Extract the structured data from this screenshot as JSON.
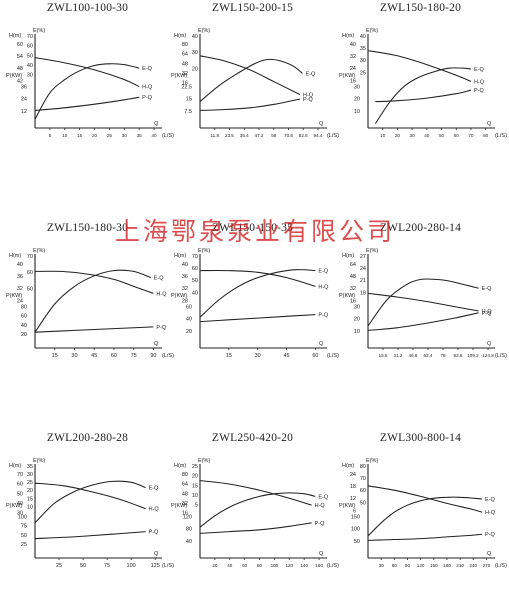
{
  "watermark": "上海鄂泉泵业有限公司",
  "chart_data": [
    {
      "type": "line",
      "title": "ZWL100-100-30",
      "flow_label": "(L/S)",
      "q_label": "Q",
      "xticks": [
        5,
        10,
        15,
        20,
        25,
        30,
        35,
        40
      ],
      "xlim": [
        0,
        42
      ],
      "axis_label_right": "E(%)",
      "axis_label_left": "H(m)",
      "power_label": "P(KW)",
      "axis_ticks_right": [
        "70",
        "60",
        "50",
        "40",
        "30"
      ],
      "axis_ticks_left": [
        "60",
        "54",
        "48",
        "42"
      ],
      "power_ticks": [
        "36",
        "24",
        "12"
      ],
      "series": [
        {
          "name": "H-Q",
          "x": [
            0,
            10,
            20,
            30,
            35
          ],
          "y": [
            0.8,
            0.74,
            0.66,
            0.55,
            0.47
          ]
        },
        {
          "name": "E-Q",
          "x": [
            0,
            5,
            10,
            15,
            20,
            25,
            30,
            35
          ],
          "y": [
            0.1,
            0.4,
            0.55,
            0.65,
            0.71,
            0.73,
            0.72,
            0.68
          ]
        },
        {
          "name": "P-Q",
          "x": [
            0,
            10,
            20,
            30,
            35
          ],
          "y": [
            0.2,
            0.23,
            0.27,
            0.32,
            0.35
          ]
        }
      ]
    },
    {
      "type": "line",
      "title": "ZWL150-200-15",
      "flow_label": "(L/S)",
      "q_label": "Q",
      "xticks": [
        "11.8",
        "23.5",
        "35.4",
        "47.2",
        "59",
        "70.8",
        "82.6",
        "94.4"
      ],
      "xlim": [
        0,
        100
      ],
      "axis_label_right": "E(%)",
      "axis_label_left": "H(m)",
      "power_label": "P(KW)",
      "axis_ticks_right": [
        "40",
        "30",
        "20"
      ],
      "axis_ticks_left": [
        "80",
        "64",
        "48",
        "32",
        "16"
      ],
      "power_ticks": [
        "22.5",
        "15",
        "7.5"
      ],
      "series": [
        {
          "name": "H-Q",
          "x": [
            0,
            20,
            40,
            60,
            80
          ],
          "y": [
            0.82,
            0.76,
            0.66,
            0.52,
            0.38
          ]
        },
        {
          "name": "E-Q",
          "x": [
            0,
            15,
            30,
            45,
            55,
            65,
            75,
            82
          ],
          "y": [
            0.3,
            0.48,
            0.62,
            0.74,
            0.78,
            0.76,
            0.7,
            0.62
          ]
        },
        {
          "name": "P-Q",
          "x": [
            0,
            20,
            40,
            60,
            80
          ],
          "y": [
            0.2,
            0.21,
            0.23,
            0.27,
            0.33
          ]
        }
      ]
    },
    {
      "type": "line",
      "title": "ZWL150-180-20",
      "flow_label": "(L/S)",
      "q_label": "Q",
      "xticks": [
        10,
        20,
        30,
        40,
        50,
        60,
        70,
        80
      ],
      "xlim": [
        0,
        85
      ],
      "axis_label_right": "E(%)",
      "axis_label_left": "H(m)",
      "power_label": "P(KW)",
      "axis_ticks_right": [
        "40",
        "35",
        "30",
        "25"
      ],
      "axis_ticks_left": [
        "40",
        "32",
        "24",
        "16"
      ],
      "power_ticks": [
        "30",
        "20",
        "10"
      ],
      "series": [
        {
          "name": "H-Q",
          "x": [
            0,
            20,
            40,
            60,
            70
          ],
          "y": [
            0.88,
            0.82,
            0.72,
            0.6,
            0.53
          ]
        },
        {
          "name": "E-Q",
          "x": [
            5,
            15,
            25,
            35,
            45,
            55,
            65,
            70
          ],
          "y": [
            0.05,
            0.3,
            0.48,
            0.58,
            0.64,
            0.68,
            0.68,
            0.67
          ]
        },
        {
          "name": "P-Q",
          "x": [
            5,
            20,
            40,
            60,
            70
          ],
          "y": [
            0.3,
            0.31,
            0.34,
            0.39,
            0.43
          ]
        }
      ]
    },
    {
      "type": "line",
      "title": "ZWL150-180-30",
      "flow_label": "(L/S)",
      "q_label": "Q",
      "xticks": [
        15,
        30,
        45,
        60,
        75,
        90
      ],
      "xlim": [
        0,
        95
      ],
      "axis_label_right": "E(%)",
      "axis_label_left": "H(m)",
      "power_label": "P(KW)",
      "axis_ticks_right": [
        "70",
        "60",
        "50"
      ],
      "axis_ticks_left": [
        "40",
        "36",
        "32",
        "24"
      ],
      "power_ticks": [
        "80",
        "60",
        "40",
        "20"
      ],
      "series": [
        {
          "name": "H-Q",
          "x": [
            0,
            20,
            40,
            60,
            75,
            90
          ],
          "y": [
            0.87,
            0.87,
            0.84,
            0.78,
            0.7,
            0.62
          ]
        },
        {
          "name": "E-Q",
          "x": [
            0,
            15,
            30,
            45,
            60,
            75,
            88
          ],
          "y": [
            0.18,
            0.5,
            0.7,
            0.82,
            0.88,
            0.87,
            0.8
          ]
        },
        {
          "name": "P-Q",
          "x": [
            0,
            30,
            60,
            90
          ],
          "y": [
            0.18,
            0.2,
            0.22,
            0.24
          ]
        }
      ]
    },
    {
      "type": "line",
      "title": "ZWL150-150-35",
      "flow_label": "(L/S)",
      "q_label": "Q",
      "xticks": [
        15,
        30,
        45,
        60
      ],
      "xlim": [
        0,
        65
      ],
      "axis_label_right": "E(%)",
      "axis_label_left": "H(m)",
      "power_label": "P(KW)",
      "axis_ticks_right": [
        "70",
        "60",
        "50",
        "40"
      ],
      "axis_ticks_left": [
        "40",
        "36",
        "32",
        "28"
      ],
      "power_ticks": [
        "60",
        "40",
        "20"
      ],
      "series": [
        {
          "name": "H-Q",
          "x": [
            0,
            15,
            30,
            45,
            60
          ],
          "y": [
            0.88,
            0.88,
            0.86,
            0.8,
            0.7
          ]
        },
        {
          "name": "E-Q",
          "x": [
            0,
            10,
            20,
            30,
            40,
            50,
            60
          ],
          "y": [
            0.35,
            0.55,
            0.7,
            0.8,
            0.86,
            0.89,
            0.88
          ]
        },
        {
          "name": "P-Q",
          "x": [
            0,
            15,
            30,
            45,
            60
          ],
          "y": [
            0.3,
            0.32,
            0.34,
            0.36,
            0.38
          ]
        }
      ]
    },
    {
      "type": "line",
      "title": "ZWL200-280-14",
      "flow_label": "(L/S)",
      "q_label": "Q",
      "xticks": [
        "15.6",
        "31.2",
        "46.8",
        "62.4",
        "78",
        "93.6",
        "109.2",
        "124.8"
      ],
      "xlim": [
        0,
        130
      ],
      "axis_label_right": "E(%)",
      "axis_label_left": "H(m)",
      "power_label": "P(KW)",
      "axis_ticks_right": [
        "27",
        "24",
        "21",
        "18"
      ],
      "axis_ticks_left": [
        "64",
        "48",
        "32",
        "16"
      ],
      "power_ticks": [
        "30",
        "20",
        "10"
      ],
      "series": [
        {
          "name": "H-Q",
          "x": [
            0,
            30,
            60,
            90,
            115
          ],
          "y": [
            0.62,
            0.58,
            0.53,
            0.47,
            0.42
          ]
        },
        {
          "name": "E-Q",
          "x": [
            0,
            20,
            40,
            55,
            70,
            85,
            100,
            115
          ],
          "y": [
            0.25,
            0.55,
            0.72,
            0.78,
            0.78,
            0.76,
            0.72,
            0.68
          ]
        },
        {
          "name": "P-Q",
          "x": [
            0,
            30,
            60,
            90,
            115
          ],
          "y": [
            0.2,
            0.23,
            0.28,
            0.34,
            0.4
          ]
        }
      ]
    },
    {
      "type": "line",
      "title": "ZWL200-280-28",
      "flow_label": "(L/S)",
      "q_label": "Q",
      "xticks": [
        25,
        50,
        75,
        100,
        125
      ],
      "xlim": [
        0,
        130
      ],
      "axis_label_right": "E(%)",
      "axis_label_left": "H(m)",
      "power_label": "P(KW)",
      "axis_ticks_right": [
        "35",
        "30",
        "25",
        "20",
        "15",
        "10"
      ],
      "axis_ticks_left": [
        "70",
        "60",
        "50",
        "40",
        "30"
      ],
      "power_ticks": [
        "100",
        "75",
        "50",
        "25"
      ],
      "series": [
        {
          "name": "H-Q",
          "x": [
            0,
            30,
            60,
            90,
            115
          ],
          "y": [
            0.85,
            0.82,
            0.75,
            0.66,
            0.56
          ]
        },
        {
          "name": "E-Q",
          "x": [
            0,
            20,
            40,
            60,
            80,
            100,
            115
          ],
          "y": [
            0.4,
            0.62,
            0.75,
            0.83,
            0.87,
            0.86,
            0.8
          ]
        },
        {
          "name": "P-Q",
          "x": [
            0,
            40,
            80,
            115
          ],
          "y": [
            0.22,
            0.24,
            0.27,
            0.3
          ]
        }
      ]
    },
    {
      "type": "line",
      "title": "ZWL250-420-20",
      "flow_label": "(L/S)",
      "q_label": "Q",
      "xticks": [
        20,
        40,
        60,
        80,
        100,
        120,
        140,
        160
      ],
      "xlim": [
        0,
        168
      ],
      "axis_label_right": "E(%)",
      "axis_label_left": "H(m)",
      "power_label": "P(KW)",
      "axis_ticks_right": [
        "25",
        "20",
        "15",
        "10",
        "5"
      ],
      "axis_ticks_left": [
        "80",
        "64",
        "48",
        "32",
        "16"
      ],
      "power_ticks": [
        "120",
        "80",
        "40"
      ],
      "series": [
        {
          "name": "H-Q",
          "x": [
            0,
            40,
            80,
            120,
            150
          ],
          "y": [
            0.88,
            0.84,
            0.77,
            0.68,
            0.6
          ]
        },
        {
          "name": "E-Q",
          "x": [
            0,
            20,
            40,
            60,
            80,
            100,
            120,
            140,
            155
          ],
          "y": [
            0.35,
            0.48,
            0.58,
            0.65,
            0.7,
            0.73,
            0.74,
            0.73,
            0.7
          ]
        },
        {
          "name": "P-Q",
          "x": [
            0,
            40,
            80,
            120,
            150
          ],
          "y": [
            0.28,
            0.3,
            0.32,
            0.36,
            0.4
          ]
        }
      ]
    },
    {
      "type": "line",
      "title": "ZWL300-800-14",
      "flow_label": "(L/S)",
      "q_label": "Q",
      "xticks": [
        30,
        60,
        90,
        120,
        150,
        180,
        210,
        240,
        270
      ],
      "xlim": [
        0,
        285
      ],
      "axis_label_right": "E(%)",
      "axis_label_left": "H(m)",
      "power_label": "P(KW)",
      "axis_ticks_right": [
        "80",
        "70",
        "60",
        "50"
      ],
      "axis_ticks_left": [
        "24",
        "18",
        "12",
        "6"
      ],
      "power_ticks": [
        "150",
        "100",
        "50"
      ],
      "series": [
        {
          "name": "H-Q",
          "x": [
            0,
            60,
            120,
            180,
            240,
            260
          ],
          "y": [
            0.82,
            0.77,
            0.7,
            0.62,
            0.55,
            0.52
          ]
        },
        {
          "name": "E-Q",
          "x": [
            0,
            30,
            60,
            90,
            120,
            150,
            180,
            210,
            240,
            260
          ],
          "y": [
            0.25,
            0.4,
            0.52,
            0.6,
            0.65,
            0.68,
            0.69,
            0.69,
            0.68,
            0.67
          ]
        },
        {
          "name": "P-Q",
          "x": [
            0,
            60,
            120,
            180,
            240,
            260
          ],
          "y": [
            0.2,
            0.21,
            0.22,
            0.24,
            0.26,
            0.27
          ]
        }
      ]
    }
  ]
}
